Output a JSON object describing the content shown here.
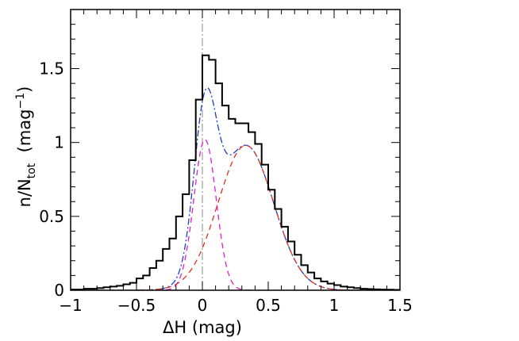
{
  "chart_data": {
    "type": "line",
    "title": "",
    "xlabel": "ΔH  (mag)",
    "ylabel_main": "n/N",
    "ylabel_sub": "tot",
    "ylabel_unit_open": "  (mag",
    "ylabel_unit_sup": "−1",
    "ylabel_unit_close": ")",
    "xlim": [
      -1.0,
      1.5
    ],
    "ylim": [
      0,
      1.9
    ],
    "x_ticks": [
      -1,
      -0.5,
      0,
      0.5,
      1,
      1.5
    ],
    "x_tick_labels": [
      "−1",
      "−0.5",
      "0",
      "0.5",
      "1",
      "1.5"
    ],
    "y_ticks": [
      0,
      0.5,
      1,
      1.5
    ],
    "y_tick_labels": [
      "0",
      "0.5",
      "1",
      "1.5"
    ],
    "grid": false,
    "reference_line_x": 0,
    "colors": {
      "histogram": "#000000",
      "total_fit": "#1f3fbf",
      "component_narrow": "#e020d0",
      "component_broad": "#e03020",
      "reference_line": "#888888"
    },
    "histogram": {
      "bin_width": 0.05,
      "bin_starts": [
        -1.0,
        -0.95,
        -0.9,
        -0.85,
        -0.8,
        -0.75,
        -0.7,
        -0.65,
        -0.6,
        -0.55,
        -0.5,
        -0.45,
        -0.4,
        -0.35,
        -0.3,
        -0.25,
        -0.2,
        -0.15,
        -0.1,
        -0.05,
        0.0,
        0.05,
        0.1,
        0.15,
        0.2,
        0.25,
        0.3,
        0.35,
        0.4,
        0.45,
        0.5,
        0.55,
        0.6,
        0.65,
        0.7,
        0.75,
        0.8,
        0.85,
        0.9,
        0.95,
        1.0,
        1.05,
        1.1,
        1.15,
        1.2,
        1.25,
        1.3,
        1.35,
        1.4,
        1.45
      ],
      "values": [
        0.005,
        0.005,
        0.01,
        0.01,
        0.015,
        0.02,
        0.025,
        0.03,
        0.04,
        0.05,
        0.08,
        0.1,
        0.15,
        0.2,
        0.28,
        0.35,
        0.5,
        0.65,
        0.88,
        1.29,
        1.59,
        1.56,
        1.4,
        1.25,
        1.16,
        1.13,
        1.13,
        1.07,
        0.99,
        0.85,
        0.68,
        0.55,
        0.43,
        0.33,
        0.24,
        0.17,
        0.12,
        0.08,
        0.06,
        0.045,
        0.035,
        0.025,
        0.02,
        0.015,
        0.01,
        0.008,
        0.006,
        0.005,
        0.004,
        0.003
      ]
    },
    "series": [
      {
        "style": "dash-dot",
        "color_key": "total_fit",
        "component": "total"
      },
      {
        "style": "dashed",
        "color_key": "component_narrow",
        "component": "narrow",
        "mu": 0.02,
        "sigma": 0.085,
        "amp": 1.02
      },
      {
        "style": "dashed",
        "color_key": "component_broad",
        "component": "broad",
        "mu": 0.33,
        "sigma": 0.21,
        "amp": 0.98
      }
    ]
  }
}
